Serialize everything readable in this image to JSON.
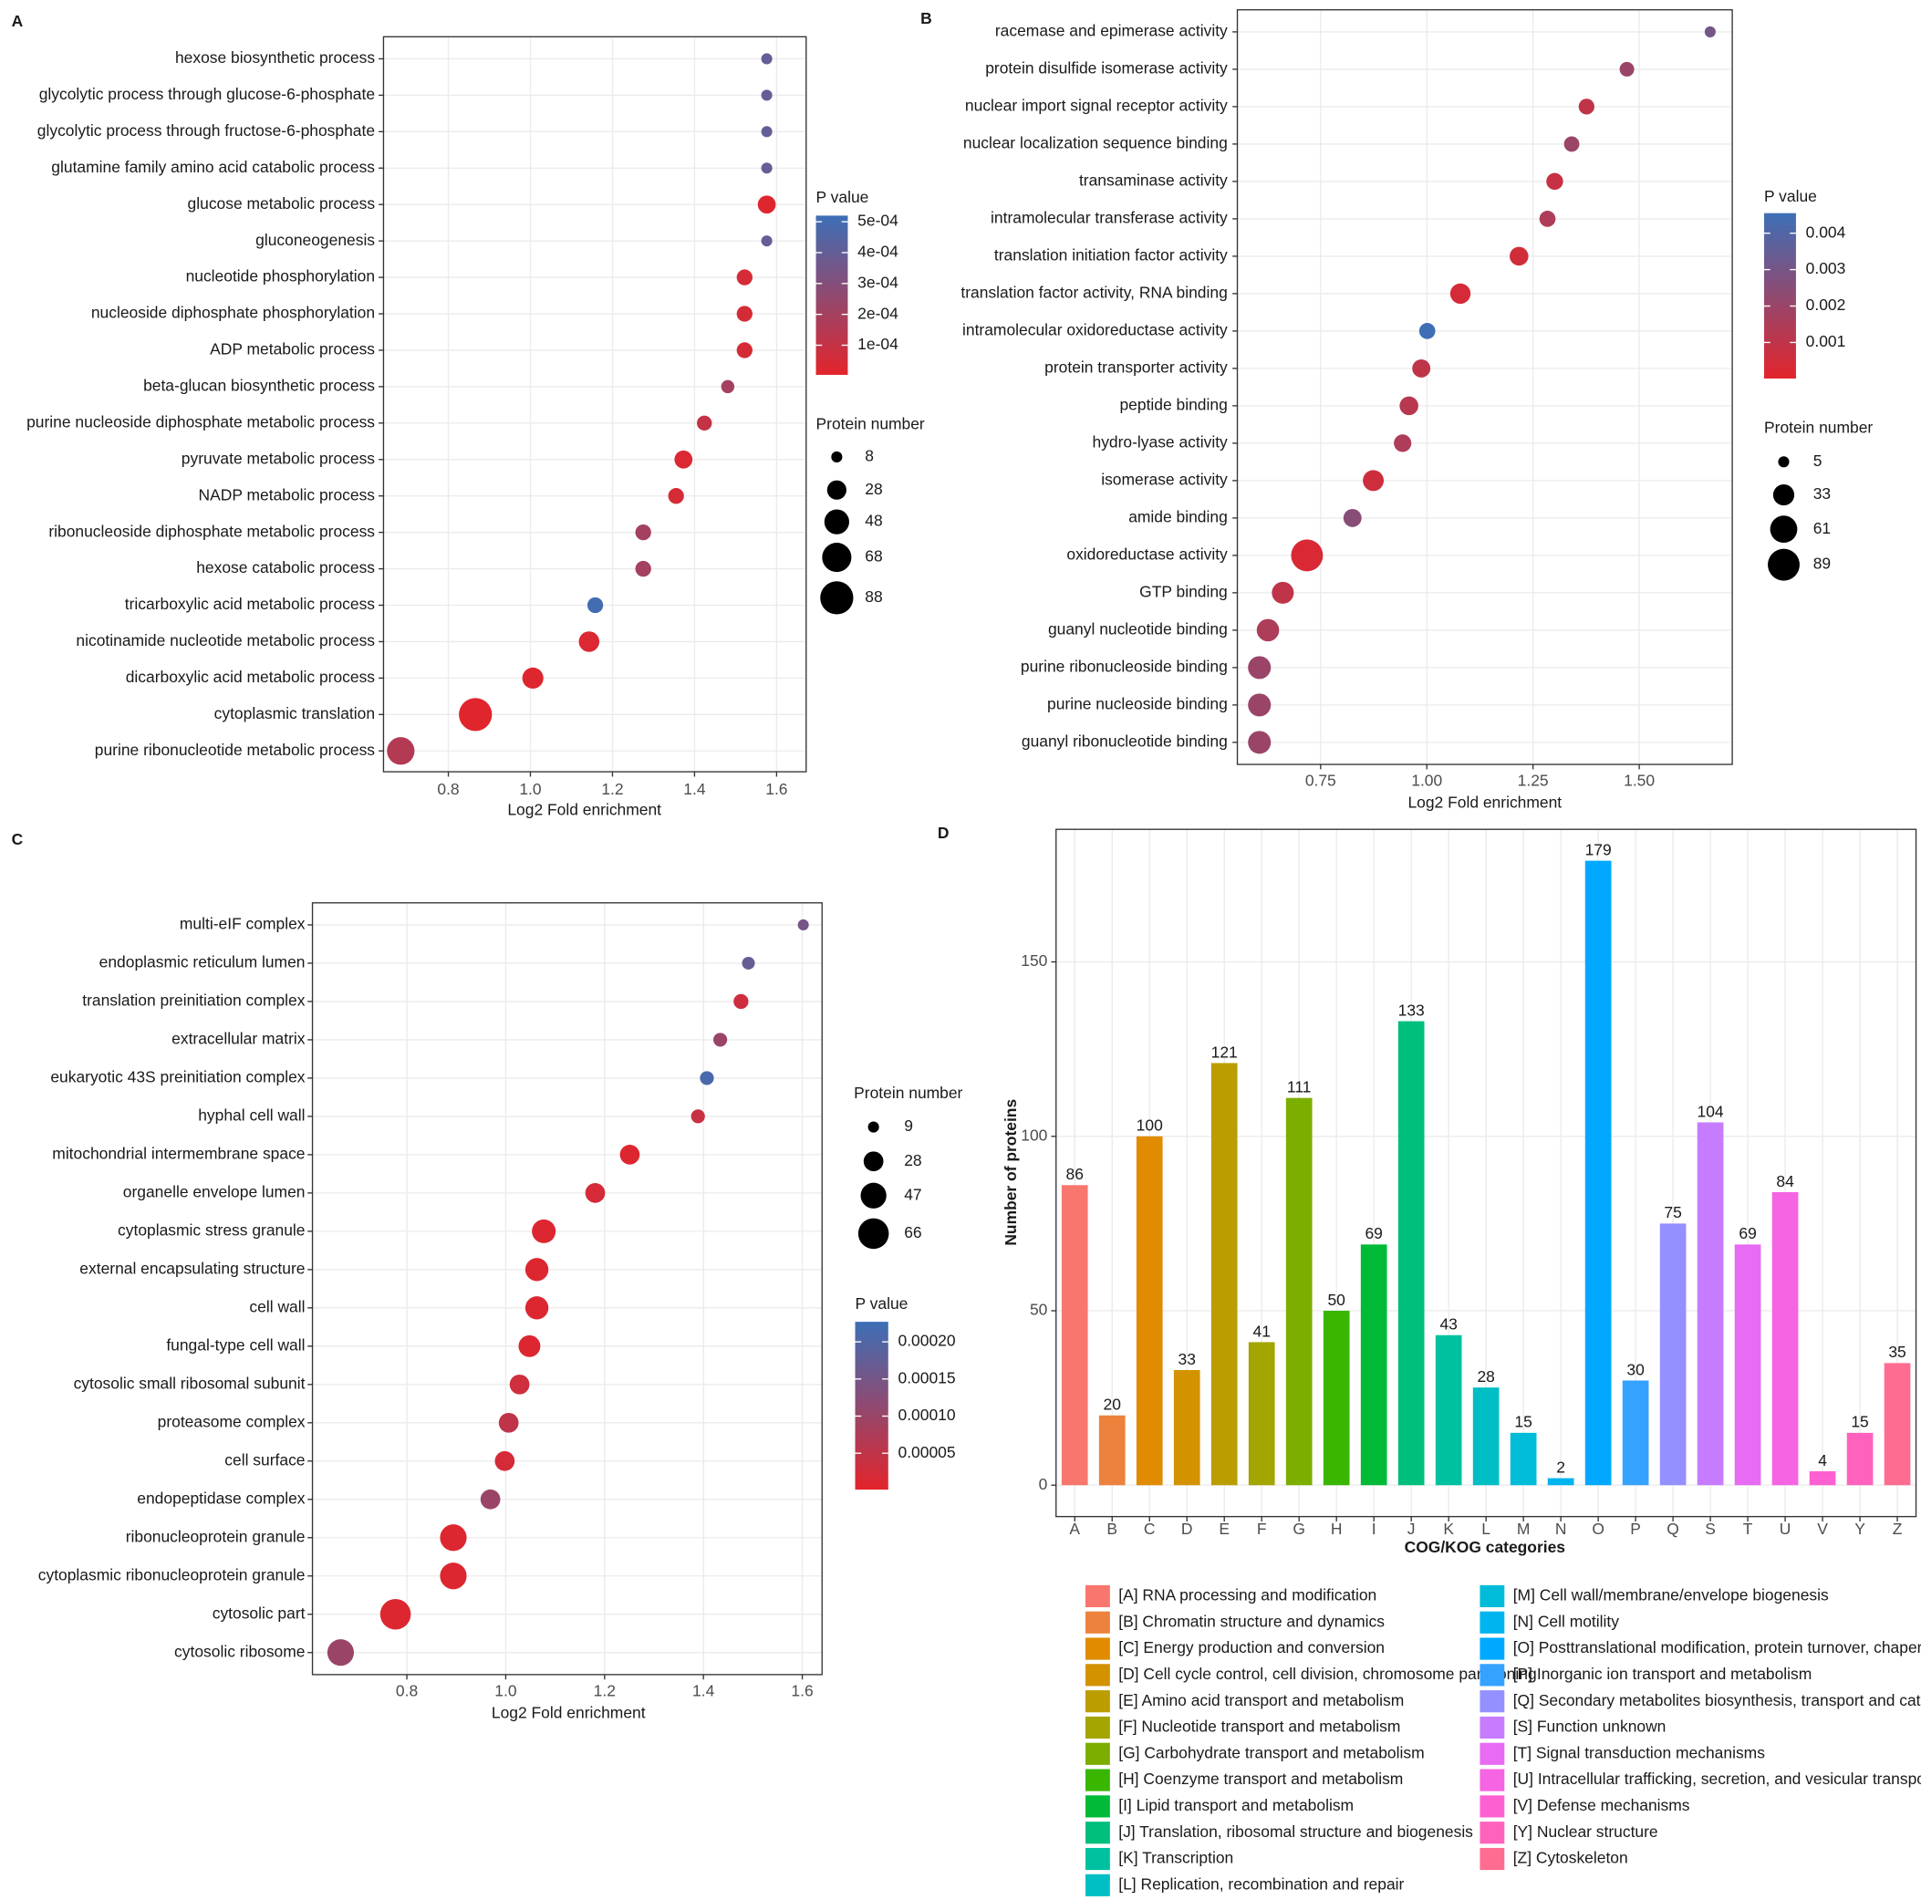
{
  "chart_data": [
    {
      "type": "bubble",
      "label": "A",
      "categories": [
        "hexose biosynthetic process",
        "glycolytic process through glucose-6-phosphate",
        "glycolytic process through fructose-6-phosphate",
        "glutamine family amino acid catabolic process",
        "glucose metabolic process",
        "gluconeogenesis",
        "nucleotide phosphorylation",
        "nucleoside diphosphate phosphorylation",
        "ADP metabolic process",
        "beta-glucan biosynthetic process",
        "purine nucleoside diphosphate metabolic process",
        "pyruvate metabolic process",
        "NADP metabolic process",
        "ribonucleoside diphosphate metabolic process",
        "hexose catabolic process",
        "tricarboxylic acid metabolic process",
        "nicotinamide nucleotide metabolic process",
        "dicarboxylic acid metabolic process",
        "cytoplasmic translation",
        "purine ribonucleotide metabolic process"
      ],
      "x": [
        1.576,
        1.576,
        1.576,
        1.576,
        1.576,
        1.576,
        1.522,
        1.522,
        1.522,
        1.481,
        1.424,
        1.373,
        1.355,
        1.275,
        1.275,
        1.158,
        1.143,
        1.006,
        0.866,
        0.684
      ],
      "sizes": [
        8,
        8,
        8,
        8,
        24,
        8,
        18,
        18,
        18,
        12,
        16,
        24,
        18,
        18,
        18,
        18,
        32,
        34,
        88,
        60
      ],
      "pvalues": [
        0.0004,
        0.0004,
        0.0004,
        0.0004,
        2e-05,
        0.0004,
        5e-05,
        5e-05,
        5e-05,
        0.0002,
        0.0001,
        3e-05,
        5e-05,
        0.0002,
        0.0002,
        0.0005,
        3e-05,
        2e-05,
        1e-05,
        0.00015
      ],
      "xlabel": "Log2 Fold enrichment",
      "xlim": [
        0.642,
        1.672
      ],
      "xticks": [
        0.8,
        {
          "value": 1,
          "label": "1.0"
        },
        1.2,
        1.4,
        1.6
      ],
      "color_title": "P value",
      "color_lim": [
        4e-06,
        0.00052
      ],
      "color_ticks": [
        {
          "value": 0.0005,
          "label": "5e-04"
        },
        {
          "value": 0.0004,
          "label": "4e-04"
        },
        {
          "value": 0.0003,
          "label": "3e-04"
        },
        {
          "value": 0.0002,
          "label": "2e-04"
        },
        {
          "value": 0.0001,
          "label": "1e-04"
        }
      ],
      "colors": [
        "#e3242b",
        "#3d6fb6"
      ],
      "size_title": "Protein number",
      "size_ticks": [
        8,
        28,
        48,
        68,
        88
      ],
      "grid": true
    },
    {
      "type": "bubble",
      "label": "B",
      "categories": [
        "racemase and epimerase activity",
        "protein disulfide isomerase activity",
        "nuclear import signal receptor activity",
        "nuclear localization sequence binding",
        "transaminase activity",
        "intramolecular transferase activity",
        "translation initiation factor activity",
        "translation factor activity, RNA binding",
        "intramolecular oxidoreductase activity",
        "protein transporter activity",
        "peptide binding",
        "hydro-lyase activity",
        "isomerase activity",
        "amide binding",
        "oxidoreductase activity",
        "GTP binding",
        "guanyl nucleotide binding",
        "purine ribonucleoside binding",
        "purine nucleoside binding",
        "guanyl ribonucleotide binding"
      ],
      "x": [
        1.667,
        1.471,
        1.376,
        1.341,
        1.301,
        1.284,
        1.217,
        1.079,
        1.001,
        0.987,
        0.958,
        0.943,
        0.874,
        0.825,
        0.718,
        0.661,
        0.626,
        0.606,
        0.606,
        0.606
      ],
      "sizes": [
        5,
        12,
        15,
        14,
        18,
        16,
        24,
        30,
        16,
        22,
        24,
        20,
        32,
        22,
        89,
        36,
        38,
        40,
        40,
        40
      ],
      "pvalues": [
        0.003,
        0.002,
        0.001,
        0.002,
        0.0008,
        0.0015,
        0.0005,
        0.0004,
        0.0045,
        0.001,
        0.0012,
        0.0015,
        0.0006,
        0.0025,
        0.0003,
        0.001,
        0.0015,
        0.002,
        0.002,
        0.002
      ],
      "xlabel": "Log2 Fold enrichment",
      "xlim": [
        0.554,
        1.719
      ],
      "xticks": [
        0.75,
        {
          "value": 1,
          "label": "1.00"
        },
        1.25,
        {
          "value": 1.5,
          "label": "1.50"
        }
      ],
      "color_title": "P value",
      "color_lim": [
        1e-05,
        0.00455
      ],
      "color_ticks": [
        0.004,
        0.003,
        0.002,
        0.001
      ],
      "colors": [
        "#e3242b",
        "#3d6fb6"
      ],
      "size_title": "Protein number",
      "size_ticks": [
        5,
        33,
        61,
        89
      ],
      "grid": true
    },
    {
      "type": "bubble",
      "label": "C",
      "categories": [
        "multi-eIF complex",
        "endoplasmic reticulum lumen",
        "translation preinitiation complex",
        "extracellular matrix",
        "eukaryotic 43S preinitiation complex",
        "hyphal cell wall",
        "mitochondrial intermembrane space",
        "organelle envelope lumen",
        "cytoplasmic stress granule",
        "external encapsulating structure",
        "cell wall",
        "fungal-type cell wall",
        "cytosolic small ribosomal subunit",
        "proteasome complex",
        "cell surface",
        "endopeptidase complex",
        "ribonucleoprotein granule",
        "cytoplasmic ribonucleoprotein granule",
        "cytosolic part",
        "cytosolic ribosome"
      ],
      "x": [
        1.602,
        1.491,
        1.476,
        1.434,
        1.407,
        1.389,
        1.251,
        1.181,
        1.077,
        1.063,
        1.063,
        1.048,
        1.028,
        1.006,
        0.998,
        0.969,
        0.894,
        0.894,
        0.777,
        0.666
      ],
      "sizes": [
        9,
        12,
        16,
        14,
        14,
        14,
        28,
        28,
        40,
        38,
        38,
        34,
        28,
        28,
        28,
        28,
        50,
        50,
        66,
        50
      ],
      "pvalues": [
        0.00015,
        0.00017,
        3e-05,
        0.0001,
        0.00021,
        4e-05,
        1e-05,
        2e-05,
        1e-05,
        1e-05,
        1e-05,
        1e-05,
        3e-05,
        5e-05,
        2e-05,
        0.0001,
        1e-05,
        1e-05,
        1e-05,
        0.0001
      ],
      "xlabel": "Log2 Fold enrichment",
      "xlim": [
        0.609,
        1.64
      ],
      "xticks": [
        0.8,
        {
          "value": 1,
          "label": "1.0"
        },
        1.2,
        1.4,
        1.6
      ],
      "color_title": "P value",
      "color_lim": [
        1e-06,
        0.000227
      ],
      "color_ticks": [
        {
          "value": 0.0002,
          "label": "0.00020"
        },
        0.00015,
        {
          "value": 0.0001,
          "label": "0.00010"
        },
        5e-05
      ],
      "colors": [
        "#e3242b",
        "#3d6fb6"
      ],
      "size_title": "Protein number",
      "size_ticks": [
        9,
        28,
        47,
        66
      ],
      "grid": true
    },
    {
      "type": "bar",
      "label": "D",
      "categories": [
        "A",
        "B",
        "C",
        "D",
        "E",
        "F",
        "G",
        "H",
        "I",
        "J",
        "K",
        "L",
        "M",
        "N",
        "O",
        "P",
        "Q",
        "S",
        "T",
        "U",
        "V",
        "Y",
        "Z"
      ],
      "values": [
        86,
        20,
        100,
        33,
        121,
        41,
        111,
        50,
        69,
        133,
        43,
        28,
        15,
        2,
        179,
        30,
        75,
        104,
        69,
        84,
        4,
        15,
        35
      ],
      "colors": [
        "#F8766D",
        "#EC823C",
        "#E08B00",
        "#D39200",
        "#BB9D00",
        "#A3A500",
        "#7CAE00",
        "#39B600",
        "#00BA38",
        "#00BF7D",
        "#00C19F",
        "#00BFC4",
        "#00BCD8",
        "#00B4F0",
        "#00A9FF",
        "#35A2FF",
        "#9590FF",
        "#C77CFF",
        "#E76BF3",
        "#F564E3",
        "#FD61D1",
        "#FF62BC",
        "#FF6C91"
      ],
      "legend_labels": [
        "[A] RNA processing and modification",
        "[B] Chromatin structure and dynamics",
        "[C] Energy production and conversion",
        "[D] Cell cycle control, cell division, chromosome partitioning",
        "[E] Amino acid transport and metabolism",
        "[F] Nucleotide transport and metabolism",
        "[G] Carbohydrate transport and metabolism",
        "[H] Coenzyme transport and metabolism",
        "[I] Lipid transport and metabolism",
        "[J] Translation, ribosomal structure and biogenesis",
        "[K] Transcription",
        "[L] Replication, recombination and repair",
        "[M] Cell wall/membrane/envelope biogenesis",
        "[N] Cell motility",
        "[O] Posttranslational modification, protein turnover, chaperones",
        "[P] Inorganic ion transport and metabolism",
        "[Q] Secondary metabolites biosynthesis, transport and catabolism",
        "[S] Function unknown",
        "[T] Signal transduction mechanisms",
        "[U] Intracellular trafficking, secretion, and vesicular transport",
        "[V] Defense mechanisms",
        "[Y] Nuclear structure",
        "[Z] Cytoskeleton"
      ],
      "xlabel": "COG/KOG categories",
      "ylabel": "Number of proteins",
      "ylim": [
        -9,
        188
      ],
      "yticks": [
        0,
        50,
        100,
        150
      ],
      "grid": true
    }
  ]
}
